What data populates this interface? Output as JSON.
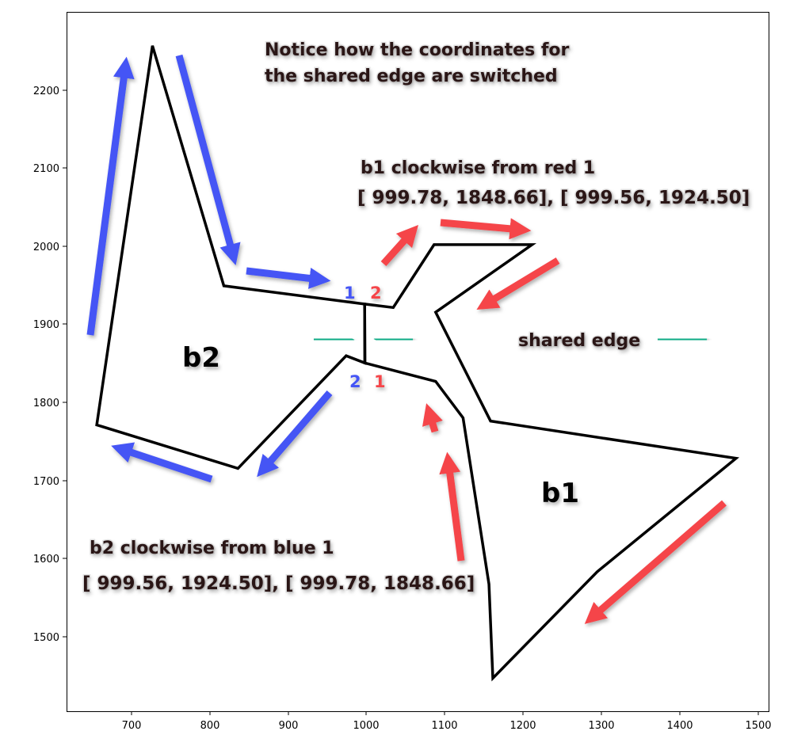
{
  "colors": {
    "blue": "#4455f5",
    "red": "#f5444a",
    "green": "#10ab85",
    "text": "#2a1414"
  },
  "chart_data": {
    "type": "diagram",
    "xlim": [
      620,
      1515
    ],
    "ylim": [
      1400,
      2300
    ],
    "x_ticks": [
      "700",
      "800",
      "900",
      "1000",
      "1100",
      "1200",
      "1300",
      "1400",
      "1500"
    ],
    "y_ticks": [
      "1500",
      "1600",
      "1700",
      "1800",
      "1900",
      "2000",
      "2100",
      "2200"
    ],
    "polygons": [
      {
        "name": "b2",
        "points": [
          [
            729,
            2257
          ],
          [
            820,
            1948
          ],
          [
            999.56,
            1924.5
          ],
          [
            999.78,
            1848.66
          ],
          [
            976,
            1858
          ],
          [
            838,
            1713
          ],
          [
            658,
            1769
          ]
        ]
      },
      {
        "name": "b1",
        "points": [
          [
            999.56,
            1924.5
          ],
          [
            1036,
            1920
          ],
          [
            1088,
            2001
          ],
          [
            1213,
            2001
          ],
          [
            1090,
            1914
          ],
          [
            1160,
            1774
          ],
          [
            1473,
            1726
          ],
          [
            1296,
            1580
          ],
          [
            1163,
            1443
          ],
          [
            1158,
            1564
          ],
          [
            1125,
            1778
          ],
          [
            1090,
            1825
          ],
          [
            999.78,
            1848.66
          ]
        ]
      }
    ]
  },
  "title_lines": [
    "Notice how the coordinates for",
    "the shared edge are switched"
  ],
  "b1_caption": "b1 clockwise from red 1",
  "b1_coords": "[ 999.78,  1848.66],  [ 999.56,  1924.50]",
  "b2_caption": "b2 clockwise from blue 1",
  "b2_coords": "[ 999.56,  1924.50],  [ 999.78,  1848.66]",
  "legend_text": "shared edge",
  "vertex_labels": {
    "blue_top": "1",
    "red_top": "2",
    "blue_bottom": "2",
    "red_bottom": "1"
  },
  "region_labels": {
    "b1": "b1",
    "b2": "b2"
  }
}
